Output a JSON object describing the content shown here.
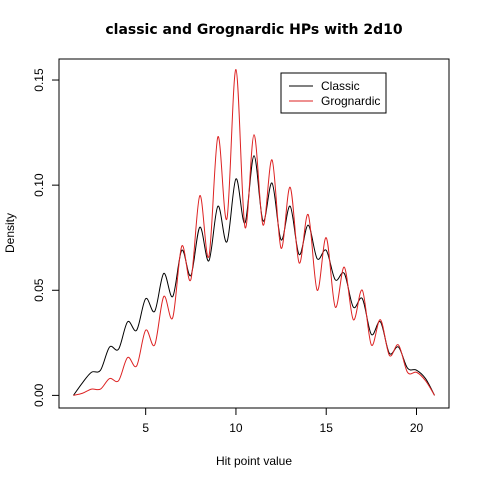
{
  "chart_data": {
    "type": "line",
    "title": "classic and Grognardic HPs with 2d10",
    "xlabel": "Hit point value",
    "ylabel": "Density",
    "xlim": [
      0.2,
      21.8
    ],
    "ylim": [
      -0.006,
      0.16
    ],
    "xticks": [
      5,
      10,
      15,
      20
    ],
    "yticks": [
      0.0,
      0.05,
      0.1,
      0.15
    ],
    "xtick_labels": [
      "5",
      "10",
      "15",
      "20"
    ],
    "ytick_labels": [
      "0.00",
      "0.05",
      "0.10",
      "0.15"
    ],
    "legend_position": "top-right",
    "grid": false,
    "series": [
      {
        "name": "Classic",
        "color": "#000000",
        "points": [
          [
            1.0,
            0.0
          ],
          [
            1.5,
            0.006
          ],
          [
            2.0,
            0.011
          ],
          [
            2.5,
            0.012
          ],
          [
            3.0,
            0.023
          ],
          [
            3.5,
            0.022
          ],
          [
            4.0,
            0.035
          ],
          [
            4.5,
            0.031
          ],
          [
            5.0,
            0.046
          ],
          [
            5.5,
            0.04
          ],
          [
            6.0,
            0.058
          ],
          [
            6.5,
            0.047
          ],
          [
            7.0,
            0.069
          ],
          [
            7.5,
            0.057
          ],
          [
            8.0,
            0.08
          ],
          [
            8.5,
            0.064
          ],
          [
            9.0,
            0.09
          ],
          [
            9.5,
            0.073
          ],
          [
            10.0,
            0.103
          ],
          [
            10.5,
            0.082
          ],
          [
            11.0,
            0.114
          ],
          [
            11.5,
            0.083
          ],
          [
            12.0,
            0.101
          ],
          [
            12.5,
            0.074
          ],
          [
            13.0,
            0.09
          ],
          [
            13.5,
            0.067
          ],
          [
            14.0,
            0.081
          ],
          [
            14.5,
            0.065
          ],
          [
            15.0,
            0.069
          ],
          [
            15.5,
            0.055
          ],
          [
            16.0,
            0.058
          ],
          [
            16.5,
            0.042
          ],
          [
            17.0,
            0.046
          ],
          [
            17.5,
            0.029
          ],
          [
            18.0,
            0.035
          ],
          [
            18.5,
            0.02
          ],
          [
            19.0,
            0.023
          ],
          [
            19.5,
            0.013
          ],
          [
            20.0,
            0.012
          ],
          [
            20.5,
            0.008
          ],
          [
            21.0,
            0.0
          ]
        ]
      },
      {
        "name": "Grognardic",
        "color": "#dd2222",
        "points": [
          [
            1.0,
            0.0
          ],
          [
            1.5,
            0.001
          ],
          [
            2.0,
            0.003
          ],
          [
            2.5,
            0.003
          ],
          [
            3.0,
            0.008
          ],
          [
            3.5,
            0.007
          ],
          [
            4.0,
            0.018
          ],
          [
            4.5,
            0.014
          ],
          [
            5.0,
            0.031
          ],
          [
            5.5,
            0.024
          ],
          [
            6.0,
            0.047
          ],
          [
            6.5,
            0.037
          ],
          [
            7.0,
            0.071
          ],
          [
            7.5,
            0.055
          ],
          [
            8.0,
            0.095
          ],
          [
            8.5,
            0.066
          ],
          [
            9.0,
            0.123
          ],
          [
            9.5,
            0.084
          ],
          [
            10.0,
            0.155
          ],
          [
            10.5,
            0.08
          ],
          [
            11.0,
            0.124
          ],
          [
            11.5,
            0.081
          ],
          [
            12.0,
            0.112
          ],
          [
            12.5,
            0.07
          ],
          [
            13.0,
            0.099
          ],
          [
            13.5,
            0.063
          ],
          [
            14.0,
            0.086
          ],
          [
            14.5,
            0.05
          ],
          [
            15.0,
            0.075
          ],
          [
            15.5,
            0.042
          ],
          [
            16.0,
            0.061
          ],
          [
            16.5,
            0.036
          ],
          [
            17.0,
            0.05
          ],
          [
            17.5,
            0.024
          ],
          [
            18.0,
            0.036
          ],
          [
            18.5,
            0.019
          ],
          [
            19.0,
            0.024
          ],
          [
            19.5,
            0.011
          ],
          [
            20.0,
            0.011
          ],
          [
            20.5,
            0.007
          ],
          [
            21.0,
            0.0
          ]
        ]
      }
    ]
  }
}
